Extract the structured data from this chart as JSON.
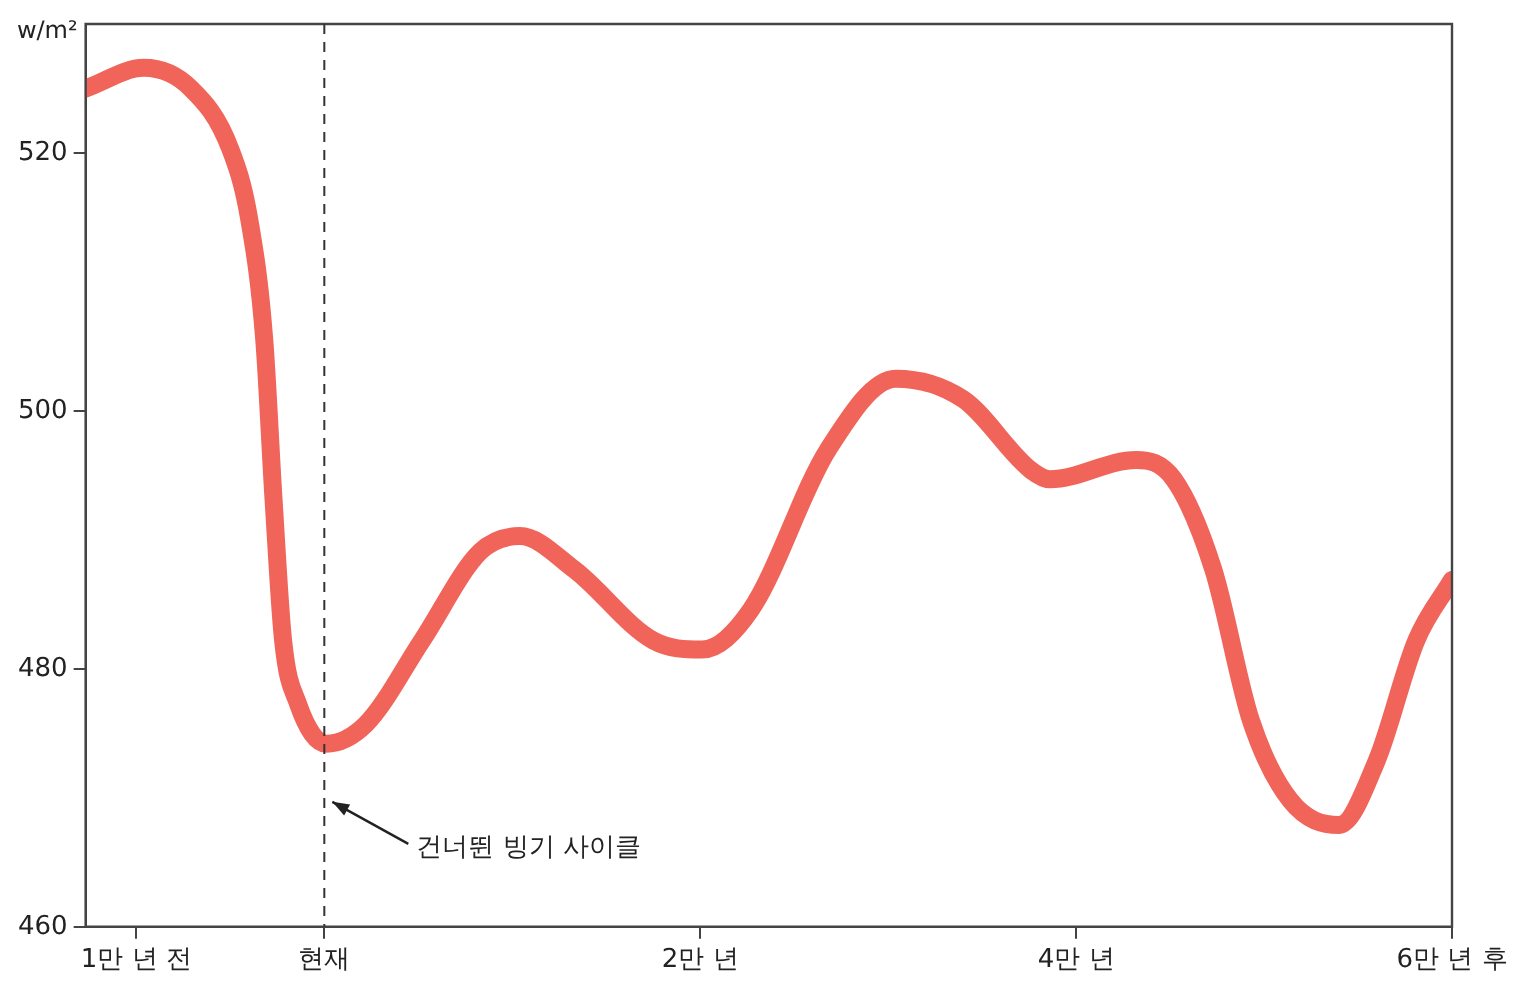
{
  "chart_data": {
    "type": "line",
    "ylabel": "w/m²",
    "x": [
      -1.27,
      -0.96,
      -0.71,
      -0.5,
      -0.4,
      -0.32,
      -0.27,
      -0.22,
      -0.14,
      0.01,
      0.22,
      0.52,
      0.83,
      1.04,
      1.33,
      1.75,
      2.01,
      2.27,
      2.68,
      3.04,
      3.4,
      3.76,
      3.86,
      4.32,
      4.52,
      4.73,
      4.93,
      5.14,
      5.4,
      5.6,
      5.81,
      6
    ],
    "series": [
      {
        "color": "#f0645a",
        "values": [
          525.0,
          526.6,
          525.0,
          520.3,
          514.9,
          505.6,
          493.1,
          482.3,
          477.3,
          474.2,
          475.7,
          482.2,
          489.1,
          490.3,
          487.7,
          482.2,
          481.5,
          484.6,
          497.0,
          502.5,
          500.9,
          495.4,
          494.7,
          496.2,
          494.7,
          487.7,
          476.0,
          469.8,
          467.9,
          472.9,
          482.2,
          486.9
        ]
      }
    ],
    "xlim": [
      -1.27,
      6
    ],
    "xticks": [
      {
        "value": -1,
        "label": "1만 년 전"
      },
      {
        "value": 0,
        "label": "현재"
      },
      {
        "value": 2,
        "label": "2만 년"
      },
      {
        "value": 4,
        "label": "4만 년"
      },
      {
        "value": 6,
        "label": "6만 년 후"
      }
    ],
    "ylim": [
      460,
      530
    ],
    "yticks": [
      460,
      480,
      500,
      520
    ],
    "grid": false,
    "legend": false,
    "marker": "none",
    "line_style": "solid",
    "ref_lines": [
      {
        "axis": "x",
        "value": 0,
        "color": "#333333",
        "line_style": "dashed"
      }
    ],
    "annotations": [
      {
        "text": "건너뛴 빙기 사이클",
        "x": 0,
        "y": 470
      }
    ]
  }
}
